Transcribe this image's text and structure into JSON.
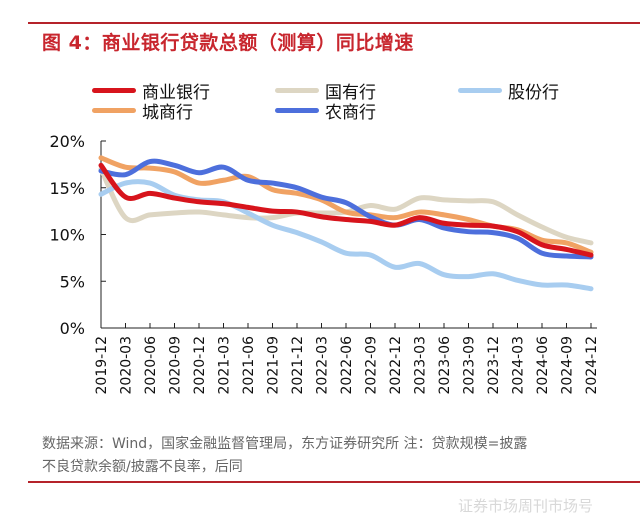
{
  "title": "图 4：商业银行贷款总额（测算）同比增速",
  "source_line1": "数据来源：Wind，国家金融监督管理局，东方证券研究所  注：贷款规模=披露",
  "source_line2": "不良贷款余额/披露不良率，后同",
  "watermark": "证券市场周刊市场号",
  "chart_data": {
    "type": "line",
    "title": "",
    "xlabel": "",
    "ylabel": "",
    "ylim": [
      0,
      20
    ],
    "yticks": [
      "0%",
      "5%",
      "10%",
      "15%",
      "20%"
    ],
    "ytick_values": [
      0,
      5,
      10,
      15,
      20
    ],
    "grid": false,
    "legend_position": "top",
    "categories": [
      "2019-12",
      "2020-03",
      "2020-06",
      "2020-09",
      "2020-12",
      "2021-03",
      "2021-06",
      "2021-09",
      "2021-12",
      "2022-03",
      "2022-06",
      "2022-09",
      "2022-12",
      "2023-03",
      "2023-06",
      "2023-09",
      "2023-12",
      "2024-03",
      "2024-06",
      "2024-09",
      "2024-12"
    ],
    "series": [
      {
        "name": "商业银行",
        "color": "#d7141c",
        "values": [
          17.4,
          14.0,
          14.4,
          13.9,
          13.5,
          13.3,
          12.9,
          12.5,
          12.4,
          11.9,
          11.6,
          11.4,
          11.0,
          11.8,
          11.2,
          11.0,
          10.9,
          10.3,
          8.9,
          8.4,
          7.8
        ]
      },
      {
        "name": "国有行",
        "color": "#ddd6c3",
        "values": [
          17.0,
          11.8,
          12.1,
          12.3,
          12.4,
          12.1,
          11.8,
          11.8,
          12.3,
          12.3,
          12.4,
          13.1,
          12.7,
          13.9,
          13.7,
          13.6,
          13.5,
          12.1,
          10.8,
          9.7,
          9.1
        ]
      },
      {
        "name": "股份行",
        "color": "#a8cdf0",
        "values": [
          14.3,
          15.5,
          15.5,
          14.2,
          13.7,
          13.5,
          12.3,
          11.0,
          10.2,
          9.2,
          8.0,
          7.8,
          6.5,
          6.9,
          5.7,
          5.5,
          5.8,
          5.1,
          4.6,
          4.6,
          4.2
        ]
      },
      {
        "name": "城商行",
        "color": "#f0a263",
        "values": [
          18.2,
          17.2,
          17.1,
          16.7,
          15.5,
          15.8,
          16.2,
          14.8,
          14.4,
          13.7,
          12.4,
          12.1,
          11.8,
          12.4,
          12.1,
          11.6,
          10.9,
          10.5,
          9.4,
          9.1,
          8.1
        ]
      },
      {
        "name": "农商行",
        "color": "#4d6fdc",
        "values": [
          16.8,
          16.4,
          17.8,
          17.4,
          16.6,
          17.2,
          15.8,
          15.5,
          15.0,
          14.0,
          13.4,
          11.9,
          11.0,
          11.6,
          10.7,
          10.3,
          10.2,
          9.6,
          8.0,
          7.7,
          7.6
        ]
      }
    ]
  }
}
